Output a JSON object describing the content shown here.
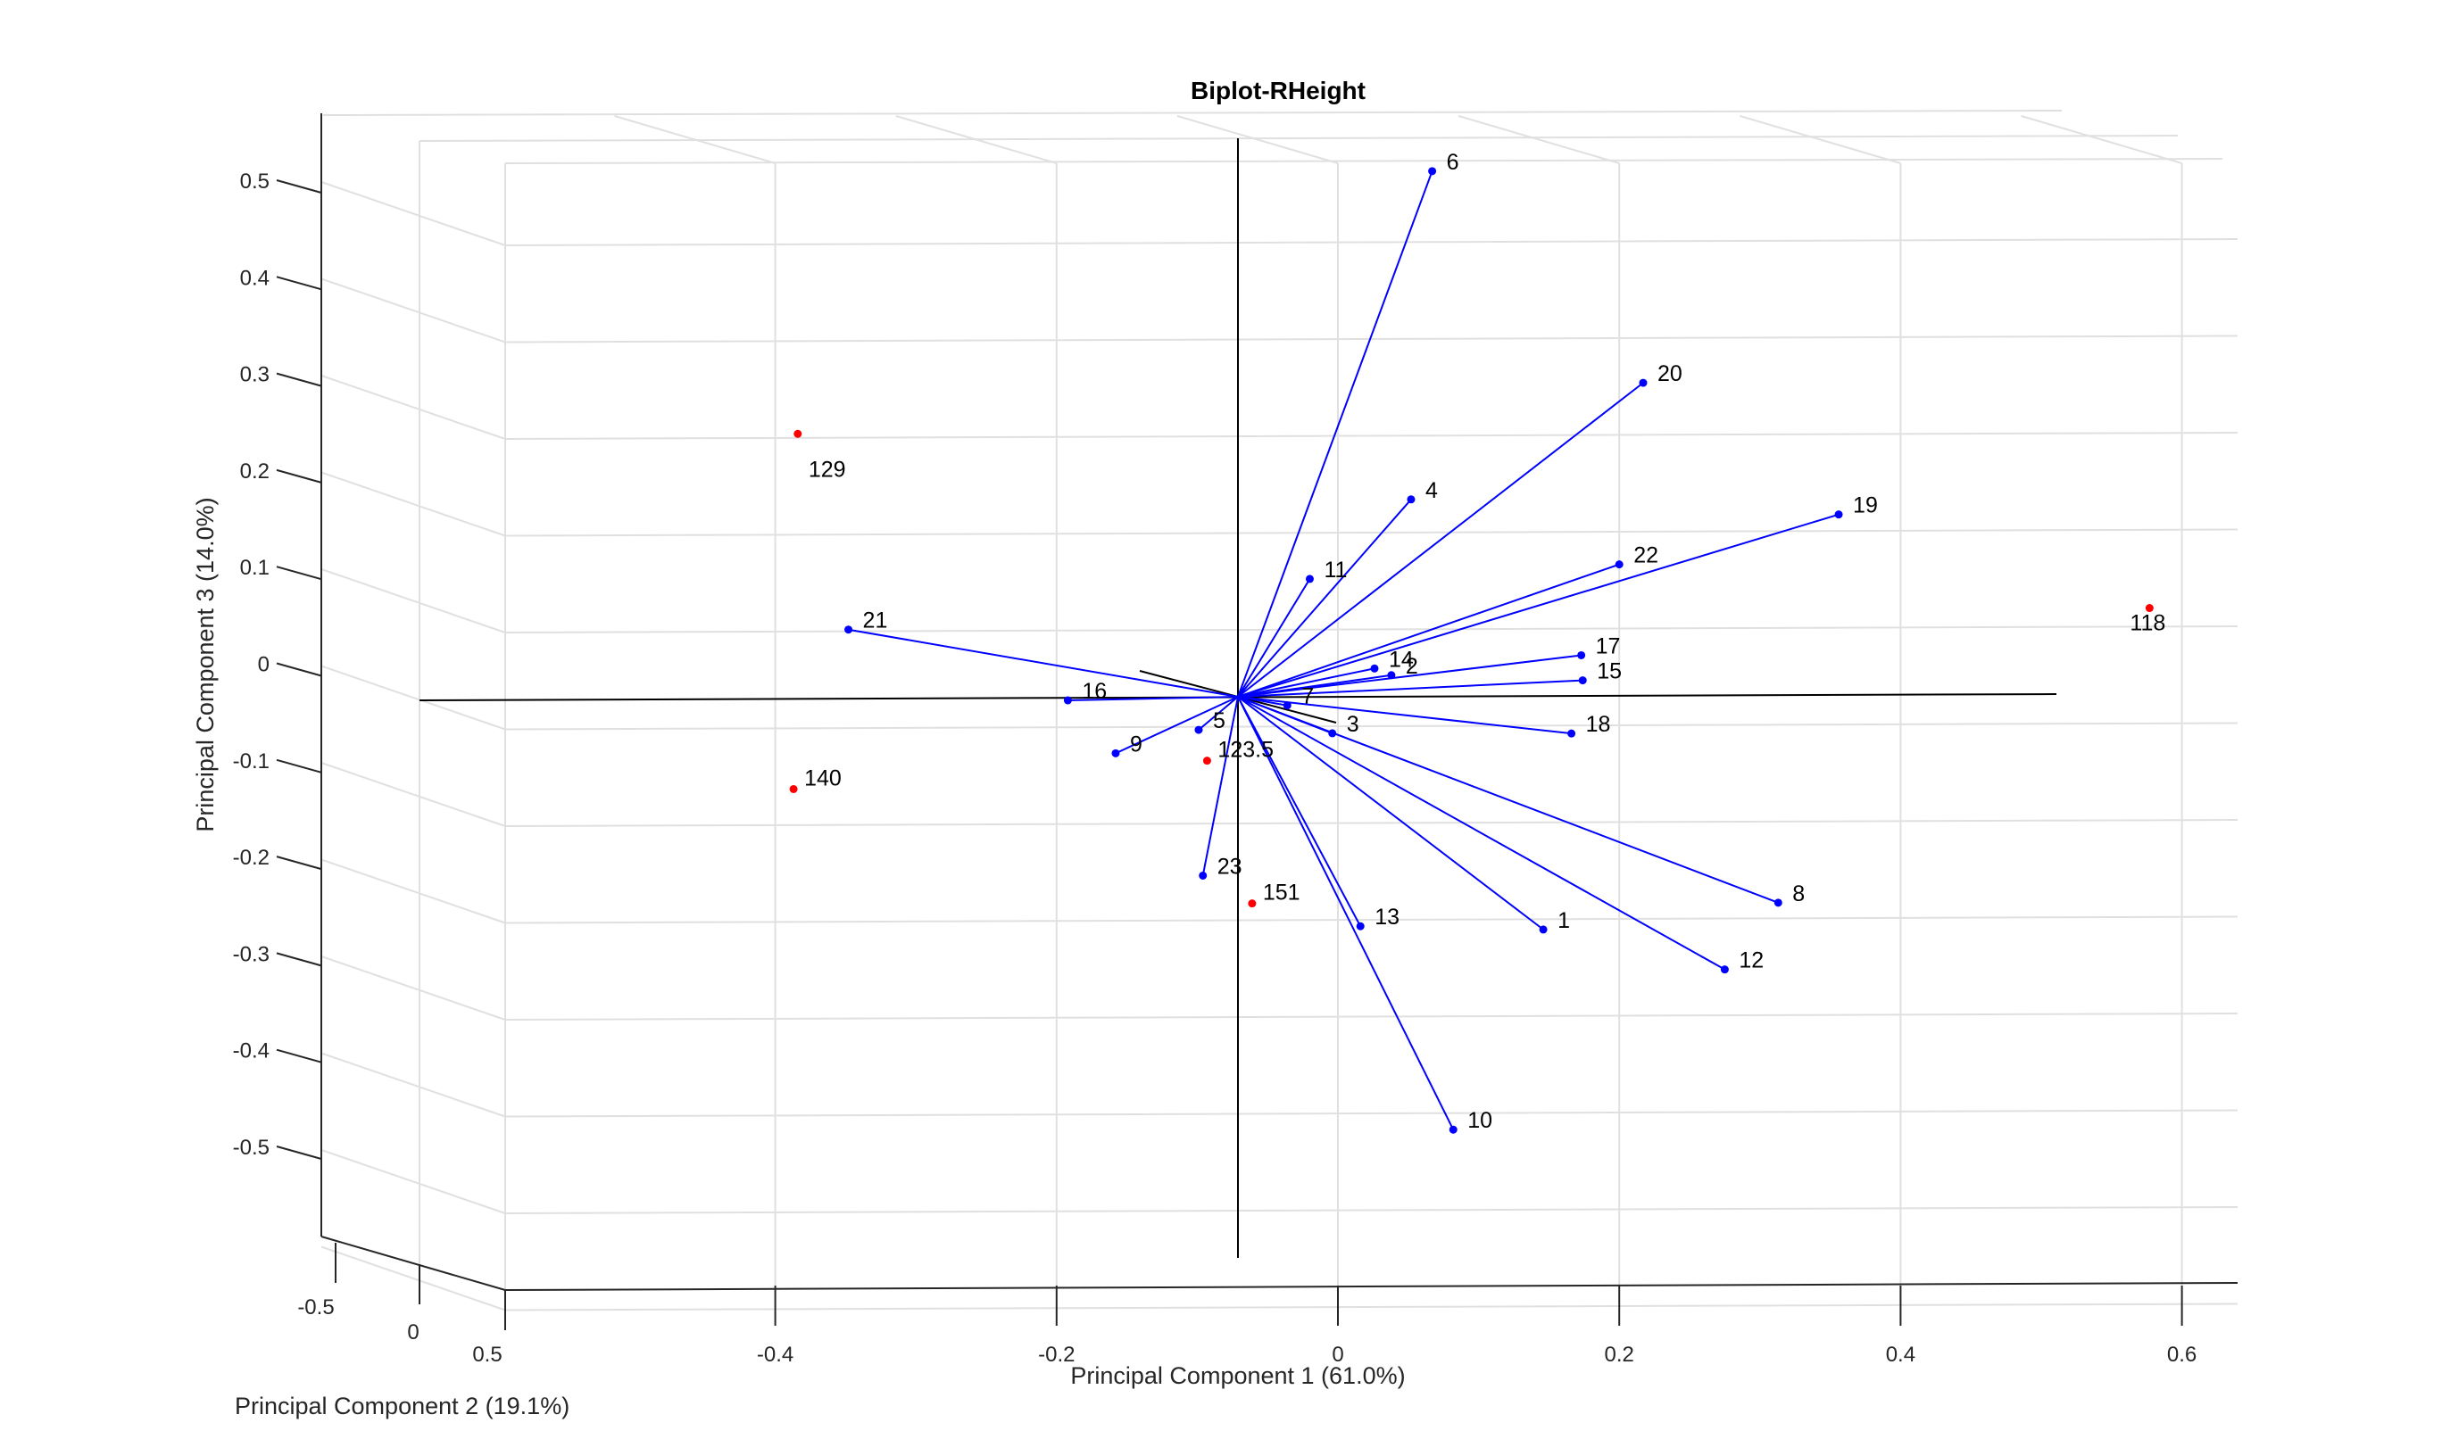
{
  "chart_data": {
    "type": "biplot-3d",
    "title": "Biplot-RHeight",
    "xlabel": "Principal Component 1 (61.0%)",
    "ylabel": "Principal Component 2 (19.1%)",
    "zlabel": "Principal Component 3 (14.0%)",
    "xlim": [
      -0.5,
      0.6
    ],
    "zlim": [
      -0.5,
      0.5
    ],
    "x_ticks": [
      "-0.4",
      "-0.2",
      "0",
      "0.2",
      "0.4",
      "0.6"
    ],
    "y_ticks": [
      "-0.5",
      "0",
      "0.5"
    ],
    "z_ticks": [
      "0.5",
      "0.4",
      "0.3",
      "0.2",
      "0.1",
      "0",
      "-0.1",
      "-0.2",
      "-0.3",
      "-0.4",
      "-0.5"
    ],
    "grid": true,
    "colors": {
      "vectors": "#0000ff",
      "observations": "#ff0000",
      "axes": "#000000",
      "grid": "#e0e0e0"
    },
    "vectors": [
      {
        "label": "1",
        "x": 0.146,
        "z": -0.276
      },
      {
        "label": "2",
        "x": 0.038,
        "z": -0.012
      },
      {
        "label": "3",
        "x": -0.004,
        "z": -0.072
      },
      {
        "label": "4",
        "x": 0.052,
        "z": 0.17
      },
      {
        "label": "5",
        "x": -0.099,
        "z": -0.068
      },
      {
        "label": "6",
        "x": 0.067,
        "z": 0.51
      },
      {
        "label": "7",
        "x": -0.036,
        "z": -0.043
      },
      {
        "label": "8",
        "x": 0.313,
        "z": -0.249
      },
      {
        "label": "9",
        "x": -0.158,
        "z": -0.092
      },
      {
        "label": "10",
        "x": 0.082,
        "z": -0.483
      },
      {
        "label": "11",
        "x": -0.02,
        "z": 0.088
      },
      {
        "label": "12",
        "x": 0.275,
        "z": -0.318
      },
      {
        "label": "13",
        "x": 0.016,
        "z": -0.272
      },
      {
        "label": "14",
        "x": 0.026,
        "z": -0.005
      },
      {
        "label": "15",
        "x": 0.174,
        "z": -0.018
      },
      {
        "label": "16",
        "x": -0.192,
        "z": -0.037
      },
      {
        "label": "17",
        "x": 0.173,
        "z": 0.008
      },
      {
        "label": "18",
        "x": 0.166,
        "z": -0.073
      },
      {
        "label": "19",
        "x": 0.356,
        "z": 0.153
      },
      {
        "label": "20",
        "x": 0.217,
        "z": 0.29
      },
      {
        "label": "21",
        "x": -0.348,
        "z": 0.037
      },
      {
        "label": "22",
        "x": 0.2,
        "z": 0.102
      },
      {
        "label": "23",
        "x": -0.096,
        "z": -0.219
      }
    ],
    "observations": [
      {
        "label": "118",
        "x": 0.577,
        "z": 0.055
      },
      {
        "label": "129",
        "x": -0.384,
        "z": 0.24
      },
      {
        "label": "140",
        "x": -0.387,
        "z": -0.128
      },
      {
        "label": "123.5",
        "x": -0.093,
        "z": -0.1
      },
      {
        "label": "151",
        "x": -0.061,
        "z": -0.248
      }
    ]
  }
}
